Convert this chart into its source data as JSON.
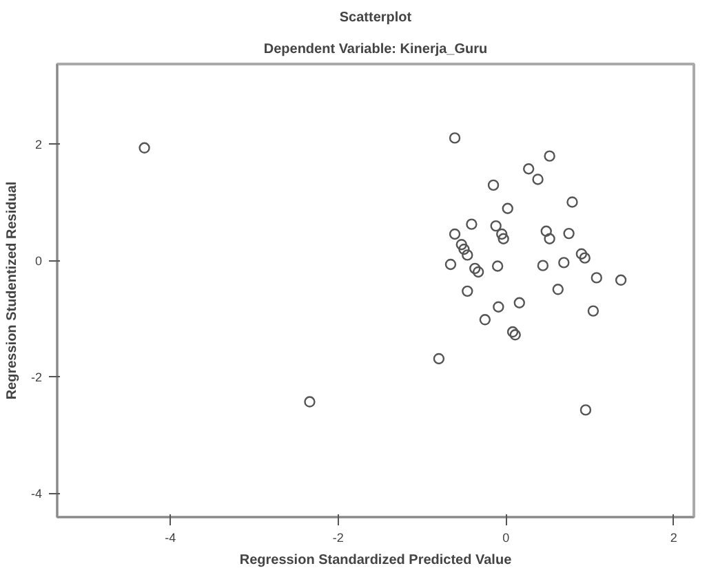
{
  "chart_data": {
    "type": "scatter",
    "title": "Scatterplot",
    "subtitle": "Dependent Variable: Kinerja_Guru",
    "xlabel": "Regression Standardized Predicted Value",
    "ylabel": "Regression Studentized Residual",
    "xlim": [
      -5.35,
      2.24
    ],
    "ylim": [
      -4.41,
      3.37
    ],
    "xticks": [
      -4,
      -2,
      0,
      2
    ],
    "yticks": [
      -4,
      -2,
      0,
      2
    ],
    "grid": false,
    "marker": "circle",
    "series": [
      {
        "color": "#555555",
        "x": [
          -4.31,
          -2.34,
          -0.61,
          0.52,
          0.27,
          0.38,
          -0.15,
          0.02,
          0.79,
          -0.41,
          -0.12,
          -0.61,
          -0.05,
          -0.03,
          0.48,
          0.52,
          0.75,
          -0.53,
          -0.5,
          -0.46,
          0.9,
          0.94,
          -0.66,
          -0.37,
          -0.33,
          -0.1,
          0.44,
          0.69,
          1.08,
          1.37,
          -0.46,
          0.62,
          -0.09,
          0.16,
          1.04,
          -0.25,
          0.08,
          0.11,
          -0.8,
          0.95
        ],
        "values": [
          1.93,
          -2.43,
          2.1,
          1.79,
          1.57,
          1.39,
          1.29,
          0.89,
          1.0,
          0.62,
          0.59,
          0.45,
          0.45,
          0.37,
          0.5,
          0.37,
          0.46,
          0.27,
          0.19,
          0.09,
          0.11,
          0.04,
          -0.07,
          -0.14,
          -0.2,
          -0.1,
          -0.09,
          -0.04,
          -0.3,
          -0.34,
          -0.53,
          -0.5,
          -0.8,
          -0.73,
          -0.87,
          -1.02,
          -1.23,
          -1.28,
          -1.69,
          -2.57
        ]
      }
    ]
  }
}
